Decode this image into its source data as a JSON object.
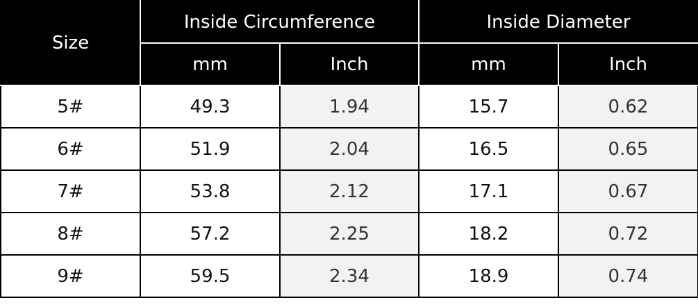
{
  "table": {
    "header": {
      "size": "Size",
      "groups": [
        {
          "title": "Inside Circumference",
          "units": [
            "mm",
            "Inch"
          ]
        },
        {
          "title": "Inside Diameter",
          "units": [
            "mm",
            "Inch"
          ]
        }
      ]
    },
    "rows": [
      [
        "5#",
        "49.3",
        "1.94",
        "15.7",
        "0.62"
      ],
      [
        "6#",
        "51.9",
        "2.04",
        "16.5",
        "0.65"
      ],
      [
        "7#",
        "53.8",
        "2.12",
        "17.1",
        "0.67"
      ],
      [
        "8#",
        "57.2",
        "2.25",
        "18.2",
        "0.72"
      ],
      [
        "9#",
        "59.5",
        "2.34",
        "18.9",
        "0.74"
      ]
    ]
  }
}
